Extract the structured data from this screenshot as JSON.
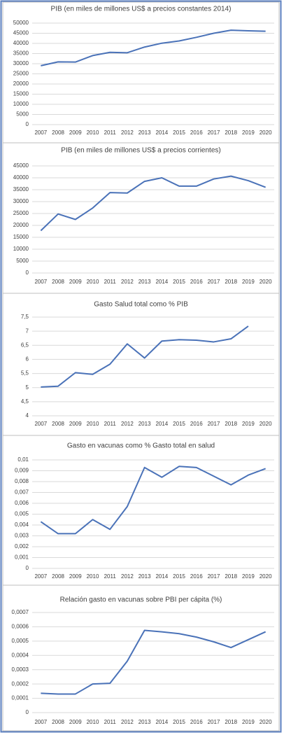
{
  "chart_data": [
    {
      "type": "line",
      "title": "PIB (en miles de millones US$ a precios constantes 2014)",
      "categories": [
        "2007",
        "2008",
        "2009",
        "2010",
        "2011",
        "2012",
        "2013",
        "2014",
        "2015",
        "2016",
        "2017",
        "2018",
        "2019",
        "2020"
      ],
      "values": [
        29000,
        30900,
        30800,
        34000,
        35600,
        35400,
        38200,
        40100,
        41200,
        43000,
        45000,
        46500,
        46200,
        46000
      ],
      "color": "#4a72b8",
      "ylim": [
        0,
        50000
      ],
      "yticks": [
        0,
        5000,
        10000,
        15000,
        20000,
        25000,
        30000,
        35000,
        40000,
        45000,
        50000
      ],
      "grid": true
    },
    {
      "type": "line",
      "title": "PIB (en miles de millones US$ a precios corrientes)",
      "categories": [
        "2007",
        "2008",
        "2009",
        "2010",
        "2011",
        "2012",
        "2013",
        "2014",
        "2015",
        "2016",
        "2017",
        "2018",
        "2019",
        "2020"
      ],
      "values": [
        17800,
        24800,
        22500,
        27300,
        33800,
        33600,
        38500,
        40000,
        36500,
        36500,
        39500,
        40700,
        38800,
        36000
      ],
      "color": "#4a72b8",
      "ylim": [
        0,
        45000
      ],
      "yticks": [
        0,
        5000,
        10000,
        15000,
        20000,
        25000,
        30000,
        35000,
        40000,
        45000
      ],
      "grid": true
    },
    {
      "type": "line",
      "title": "Gasto Salud total como % PIB",
      "categories": [
        "2007",
        "2008",
        "2009",
        "2010",
        "2011",
        "2012",
        "2013",
        "2014",
        "2015",
        "2016",
        "2017",
        "2018",
        "2019",
        "2020"
      ],
      "values": [
        5.02,
        5.05,
        5.53,
        5.47,
        5.83,
        6.55,
        6.05,
        6.65,
        6.7,
        6.68,
        6.62,
        6.73,
        7.18,
        null
      ],
      "color": "#4a72b8",
      "ylim": [
        4,
        7.5
      ],
      "yticks": [
        4,
        {
          "value": 4.5,
          "label": "4,5"
        },
        5,
        {
          "value": 5.5,
          "label": "5,5"
        },
        6,
        {
          "value": 6.5,
          "label": "6,5"
        },
        7,
        {
          "value": 7.5,
          "label": "7,5"
        }
      ],
      "grid": true
    },
    {
      "type": "line",
      "title": "Gasto en vacunas como % Gasto total en salud",
      "categories": [
        "2007",
        "2008",
        "2009",
        "2010",
        "2011",
        "2012",
        "2013",
        "2014",
        "2015",
        "2016",
        "2017",
        "2018",
        "2019",
        "2020"
      ],
      "values": [
        0.0043,
        0.0032,
        0.0032,
        0.0045,
        0.0036,
        0.0057,
        0.0093,
        0.0084,
        0.0094,
        0.0093,
        0.0085,
        0.0077,
        0.0086,
        0.0092
      ],
      "color": "#4a72b8",
      "ylim": [
        0,
        0.01
      ],
      "yticks": [
        0,
        {
          "value": 0.001,
          "label": "0,001"
        },
        {
          "value": 0.002,
          "label": "0,002"
        },
        {
          "value": 0.003,
          "label": "0,003"
        },
        {
          "value": 0.004,
          "label": "0,004"
        },
        {
          "value": 0.005,
          "label": "0,005"
        },
        {
          "value": 0.006,
          "label": "0,006"
        },
        {
          "value": 0.007,
          "label": "0,007"
        },
        {
          "value": 0.008,
          "label": "0,008"
        },
        {
          "value": 0.009,
          "label": "0,009"
        },
        {
          "value": 0.01,
          "label": "0,01"
        }
      ],
      "grid": true
    },
    {
      "type": "line",
      "title": "Relación gasto en vacunas sobre PBI per cápita (%)",
      "categories": [
        "2007",
        "2008",
        "2009",
        "2010",
        "2011",
        "2012",
        "2013",
        "2014",
        "2015",
        "2016",
        "2017",
        "2018",
        "2019",
        "2020"
      ],
      "values": [
        0.000135,
        0.00013,
        0.00013,
        0.0002,
        0.000205,
        0.00036,
        0.000575,
        0.000565,
        0.000552,
        0.000528,
        0.000495,
        0.000455,
        0.00051,
        0.000565
      ],
      "color": "#4a72b8",
      "ylim": [
        0,
        0.0007
      ],
      "yticks": [
        0,
        {
          "value": 0.0001,
          "label": "0,0001"
        },
        {
          "value": 0.0002,
          "label": "0,0002"
        },
        {
          "value": 0.0003,
          "label": "0,0003"
        },
        {
          "value": 0.0004,
          "label": "0,0004"
        },
        {
          "value": 0.0005,
          "label": "0,0005"
        },
        {
          "value": 0.0006,
          "label": "0,0006"
        },
        {
          "value": 0.0007,
          "label": "0,0007"
        }
      ],
      "grid": true
    }
  ]
}
